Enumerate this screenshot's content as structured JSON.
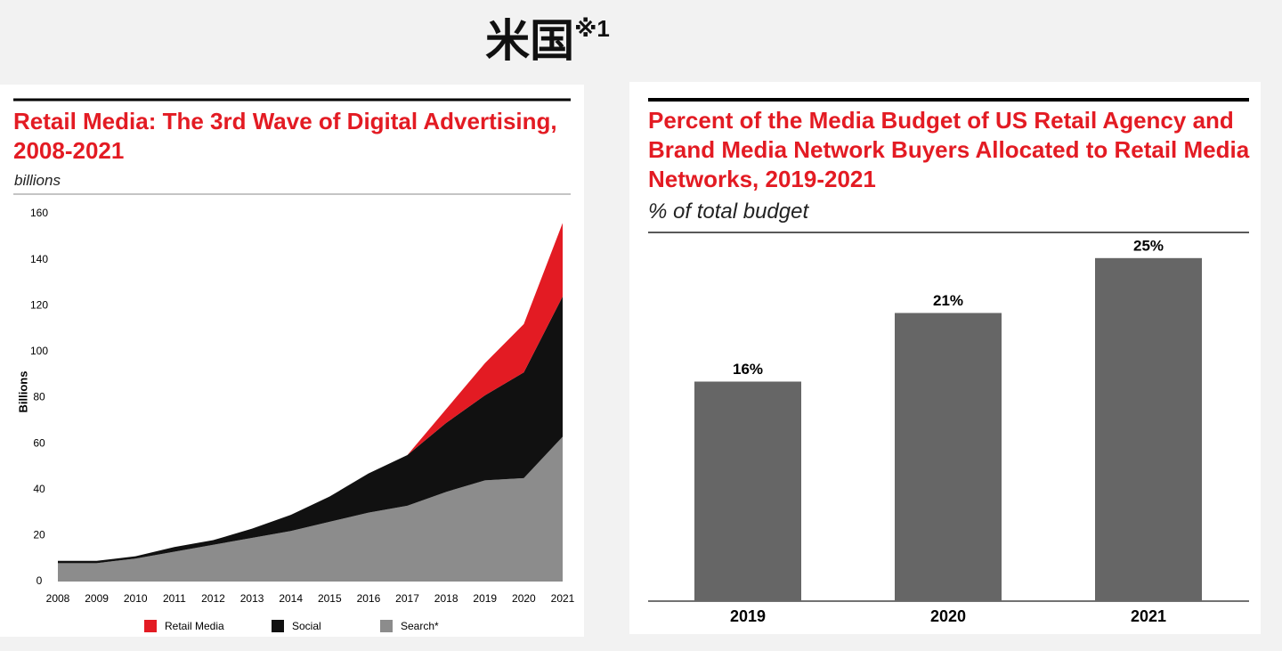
{
  "title": "米国",
  "title_note": "※1",
  "chart_data": [
    {
      "type": "area",
      "title": "Retail Media: The 3rd Wave of Digital Advertising, 2008-2021",
      "subtitle": "billions",
      "ylabel": "Billions",
      "categories": [
        "2008",
        "2009",
        "2010",
        "2011",
        "2012",
        "2013",
        "2014",
        "2015",
        "2016",
        "2017",
        "2018",
        "2019",
        "2020",
        "2021"
      ],
      "series": [
        {
          "name": "Retail Media",
          "color": "#e31b23",
          "values": [
            null,
            null,
            null,
            null,
            null,
            null,
            null,
            null,
            null,
            0,
            6,
            14,
            21,
            32
          ]
        },
        {
          "name": "Social",
          "color": "#111111",
          "values": [
            1,
            1,
            1,
            2,
            2,
            4,
            7,
            11,
            17,
            22,
            30,
            37,
            46,
            61
          ]
        },
        {
          "name": "Search*",
          "color": "#8c8c8c",
          "values": [
            8,
            8,
            10,
            13,
            16,
            19,
            22,
            26,
            30,
            33,
            39,
            44,
            45,
            63
          ]
        }
      ],
      "ylim": [
        0,
        160
      ],
      "yticks": [
        0,
        20,
        40,
        60,
        80,
        100,
        120,
        140,
        160
      ]
    },
    {
      "type": "bar",
      "title": "Percent of the Media Budget of US Retail Agency and Brand Media Network Buyers Allocated to Retail Media Networks, 2019-2021",
      "subtitle": "% of total budget",
      "categories": [
        "2019",
        "2020",
        "2021"
      ],
      "values": [
        16,
        21,
        25
      ],
      "value_labels": [
        "16%",
        "21%",
        "25%"
      ],
      "color": "#666666",
      "ylim": [
        0,
        27
      ]
    }
  ]
}
